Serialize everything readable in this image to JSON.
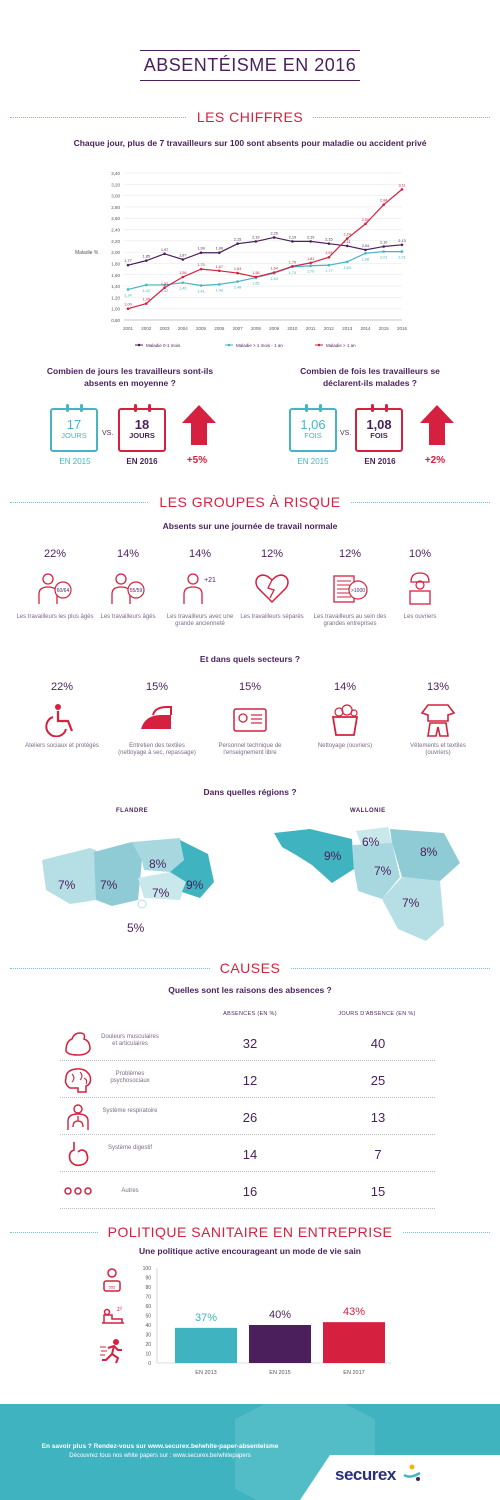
{
  "title": "ABSENTÉISME EN 2016",
  "chiffres": {
    "heading": "LES CHIFFRES",
    "subtitle": "Chaque jour, plus de 7 travailleurs sur 100 sont absents pour maladie ou accident privé"
  },
  "chart_data": {
    "type": "line",
    "ylabel": "Maladie %",
    "ylim": [
      0.8,
      3.4
    ],
    "yticks": [
      "3,40",
      "3,20",
      "3,00",
      "2,80",
      "2,60",
      "2,40",
      "2,20",
      "2,00",
      "1,80",
      "1,60",
      "1,40",
      "1,20",
      "1,00",
      "0,80"
    ],
    "x": [
      "2001",
      "2002",
      "2003",
      "2004",
      "2005",
      "2006",
      "2007",
      "2008",
      "2009",
      "2010",
      "2011",
      "2012",
      "2013",
      "2014",
      "2015",
      "2016"
    ],
    "series": [
      {
        "name": "Maladie 0-1 mois",
        "color": "#4a1f5c",
        "values": [
          1.77,
          1.85,
          1.97,
          1.87,
          1.99,
          1.99,
          2.15,
          2.19,
          2.26,
          2.19,
          2.19,
          2.15,
          2.11,
          2.04,
          2.1,
          2.13
        ],
        "labels": [
          "1,77",
          "1,85",
          "1,97",
          "1,87",
          "1,99",
          "1,99",
          "2,15",
          "2,19",
          "2,26",
          "2,19",
          "2,19",
          "2,15",
          "2,11",
          "2,04",
          "2,10",
          "2,13"
        ]
      },
      {
        "name": "Maladie > 1 mois - 1 an",
        "color": "#45b5c4",
        "values": [
          1.34,
          1.42,
          1.42,
          1.46,
          1.41,
          1.43,
          1.48,
          1.55,
          1.63,
          1.74,
          1.76,
          1.77,
          1.83,
          1.98,
          2.01,
          2.01
        ],
        "labels": [
          "1,34",
          "1,42",
          "1,42",
          "1,46",
          "1,41",
          "1,43",
          "1,48",
          "1,55",
          "1,63",
          "1,74",
          "1,76",
          "1,77",
          "1,83",
          "1,98",
          "2,01",
          "2,01"
        ]
      },
      {
        "name": "Maladie > 1 an",
        "color": "#d6203f",
        "values": [
          1.0,
          1.09,
          1.37,
          1.56,
          1.7,
          1.67,
          1.63,
          1.56,
          1.64,
          1.75,
          1.81,
          1.91,
          2.24,
          2.5,
          2.84,
          3.11
        ],
        "labels": [
          "1,00",
          "1,09",
          "1,37",
          "1,56",
          "1,70",
          "1,67",
          "1,63",
          "1,56",
          "1,64",
          "1,75",
          "1,81",
          "1,91",
          "2,24",
          "2,50",
          "2,84",
          "3,11"
        ]
      }
    ]
  },
  "jours": {
    "question": "Combien de jours les travailleurs sont-ils absents en moyenne ?",
    "v2015": "17",
    "u2015": "JOURS",
    "y2015": "EN 2015",
    "vs": "VS.",
    "v2016": "18",
    "u2016": "JOURS",
    "y2016": "EN 2016",
    "delta": "+5%"
  },
  "fois": {
    "question": "Combien de fois les travailleurs se déclarent-ils malades ?",
    "v2015": "1,06",
    "u2015": "FOIS",
    "y2015": "EN 2015",
    "vs": "VS.",
    "v2016": "1,08",
    "u2016": "FOIS",
    "y2016": "EN 2016",
    "delta": "+2%"
  },
  "groupes": {
    "heading": "LES GROUPES À RISQUE",
    "subtitle": "Absents sur une journée de travail normale",
    "items": [
      {
        "pct": "22%",
        "label": "Les travailleurs les plus âgés",
        "icon": "60/64"
      },
      {
        "pct": "14%",
        "label": "Les travailleurs âgés",
        "icon": "55/59"
      },
      {
        "pct": "14%",
        "label": "Les travailleurs avec une grande ancienneté",
        "icon": "+21"
      },
      {
        "pct": "12%",
        "label": "Les travailleurs séparés",
        "icon": "broken-heart-icon"
      },
      {
        "pct": "12%",
        "label": "Les travailleurs au sein des grandes entreprises",
        "icon": ">1000"
      },
      {
        "pct": "10%",
        "label": "Les ouvriers",
        "icon": "worker-icon"
      }
    ]
  },
  "secteurs": {
    "subtitle": "Et dans quels secteurs ?",
    "items": [
      {
        "pct": "22%",
        "label": "Ateliers sociaux et protégés"
      },
      {
        "pct": "15%",
        "label": "Entretien des textiles (nettoyage à sec, repassage)"
      },
      {
        "pct": "15%",
        "label": "Personnel technique de l'enseignement libre"
      },
      {
        "pct": "14%",
        "label": "Nettoyage (ouvriers)"
      },
      {
        "pct": "13%",
        "label": "Vêtements et textiles (ouvriers)"
      }
    ]
  },
  "regions": {
    "subtitle": "Dans quelles régions ?",
    "flandre": {
      "name": "FLANDRE",
      "values": [
        "7%",
        "7%",
        "8%",
        "7%",
        "9%",
        "5%"
      ]
    },
    "wallonie": {
      "name": "WALLONIE",
      "values": [
        "9%",
        "6%",
        "8%",
        "7%",
        "7%"
      ]
    }
  },
  "causes": {
    "heading": "CAUSES",
    "subtitle": "Quelles sont les raisons des absences ?",
    "col1": "ABSENCES (EN %)",
    "col2": "JOURS D'ABSENCE (EN %)",
    "rows": [
      {
        "label": "Douleurs musculaires et articulaires",
        "a": "32",
        "j": "40"
      },
      {
        "label": "Problèmes psychosociaux",
        "a": "12",
        "j": "25"
      },
      {
        "label": "Système respiratoire",
        "a": "26",
        "j": "13"
      },
      {
        "label": "Système digestif",
        "a": "14",
        "j": "7"
      },
      {
        "label": "Autres",
        "a": "16",
        "j": "15"
      }
    ]
  },
  "politique": {
    "heading": "POLITIQUE SANITAIRE EN ENTREPRISE",
    "subtitle": "Une politique active encourageant un mode de vie sain",
    "yticks": [
      "100",
      "90",
      "80",
      "70",
      "60",
      "50",
      "40",
      "30",
      "20",
      "10",
      "0"
    ],
    "bars": [
      {
        "label": "EN 2013",
        "value": 37,
        "text": "37%",
        "color": "#3fb3bf"
      },
      {
        "label": "EN 2015",
        "value": 40,
        "text": "40%",
        "color": "#4a1f5c"
      },
      {
        "label": "EN 2017",
        "value": 43,
        "text": "43%",
        "color": "#d6203f"
      }
    ]
  },
  "footer": {
    "line1": "En savoir plus ? Rendez-vous sur www.securex.be/white-paper-absenteisme",
    "line2": "Découvrez tous nos white papers sur : www.securex.be/whitepapers",
    "brand": "securex"
  }
}
